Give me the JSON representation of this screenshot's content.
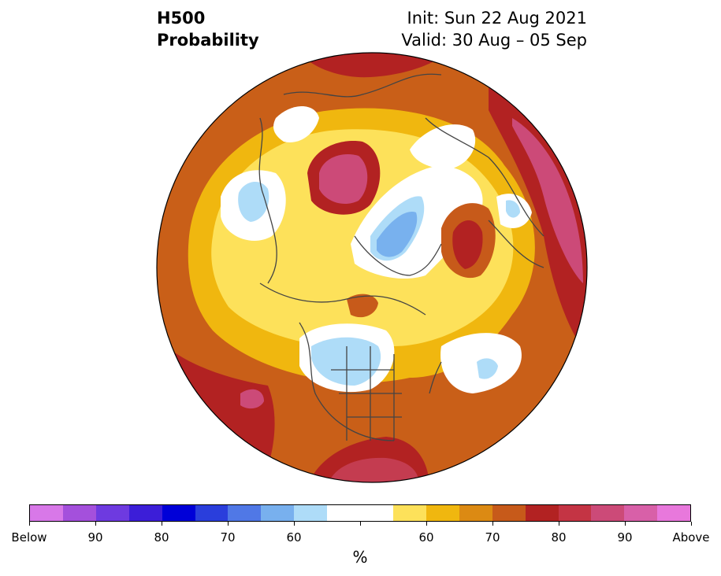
{
  "title": {
    "left_line1": "H500",
    "left_line2": "Probability",
    "right_line1": "Init: Sun 22 Aug 2021",
    "right_line2": "Valid: 30 Aug – 05 Sep"
  },
  "map": {
    "projection": "north-polar-stereographic",
    "fill_colors": {
      "outer_dark_red": "#b22222",
      "above_70": "#c75a1a",
      "above_65": "#dc8a13",
      "above_60": "#f0b70f",
      "above_55": "#fde15a",
      "neutral": "#ffffff",
      "below_55": "#aedcf8",
      "below_60": "#78b1ee",
      "above_80": "#c43c50",
      "above_85": "#cc4a78"
    }
  },
  "colorbar": {
    "colors": [
      "#d878e8",
      "#a450dc",
      "#6e3ae0",
      "#3c1ed8",
      "#0000d8",
      "#2a3edc",
      "#5078e6",
      "#78b0ee",
      "#aedcf8",
      "#ffffff",
      "#ffffff",
      "#fde15a",
      "#f0b70f",
      "#dc8a13",
      "#c75a1a",
      "#b22222",
      "#c43444",
      "#cc4a78",
      "#d860a8",
      "#e878dc"
    ],
    "tick_labels": [
      "Below",
      "90",
      "80",
      "70",
      "60",
      "60",
      "70",
      "80",
      "90",
      "Above"
    ],
    "unit": "%"
  }
}
